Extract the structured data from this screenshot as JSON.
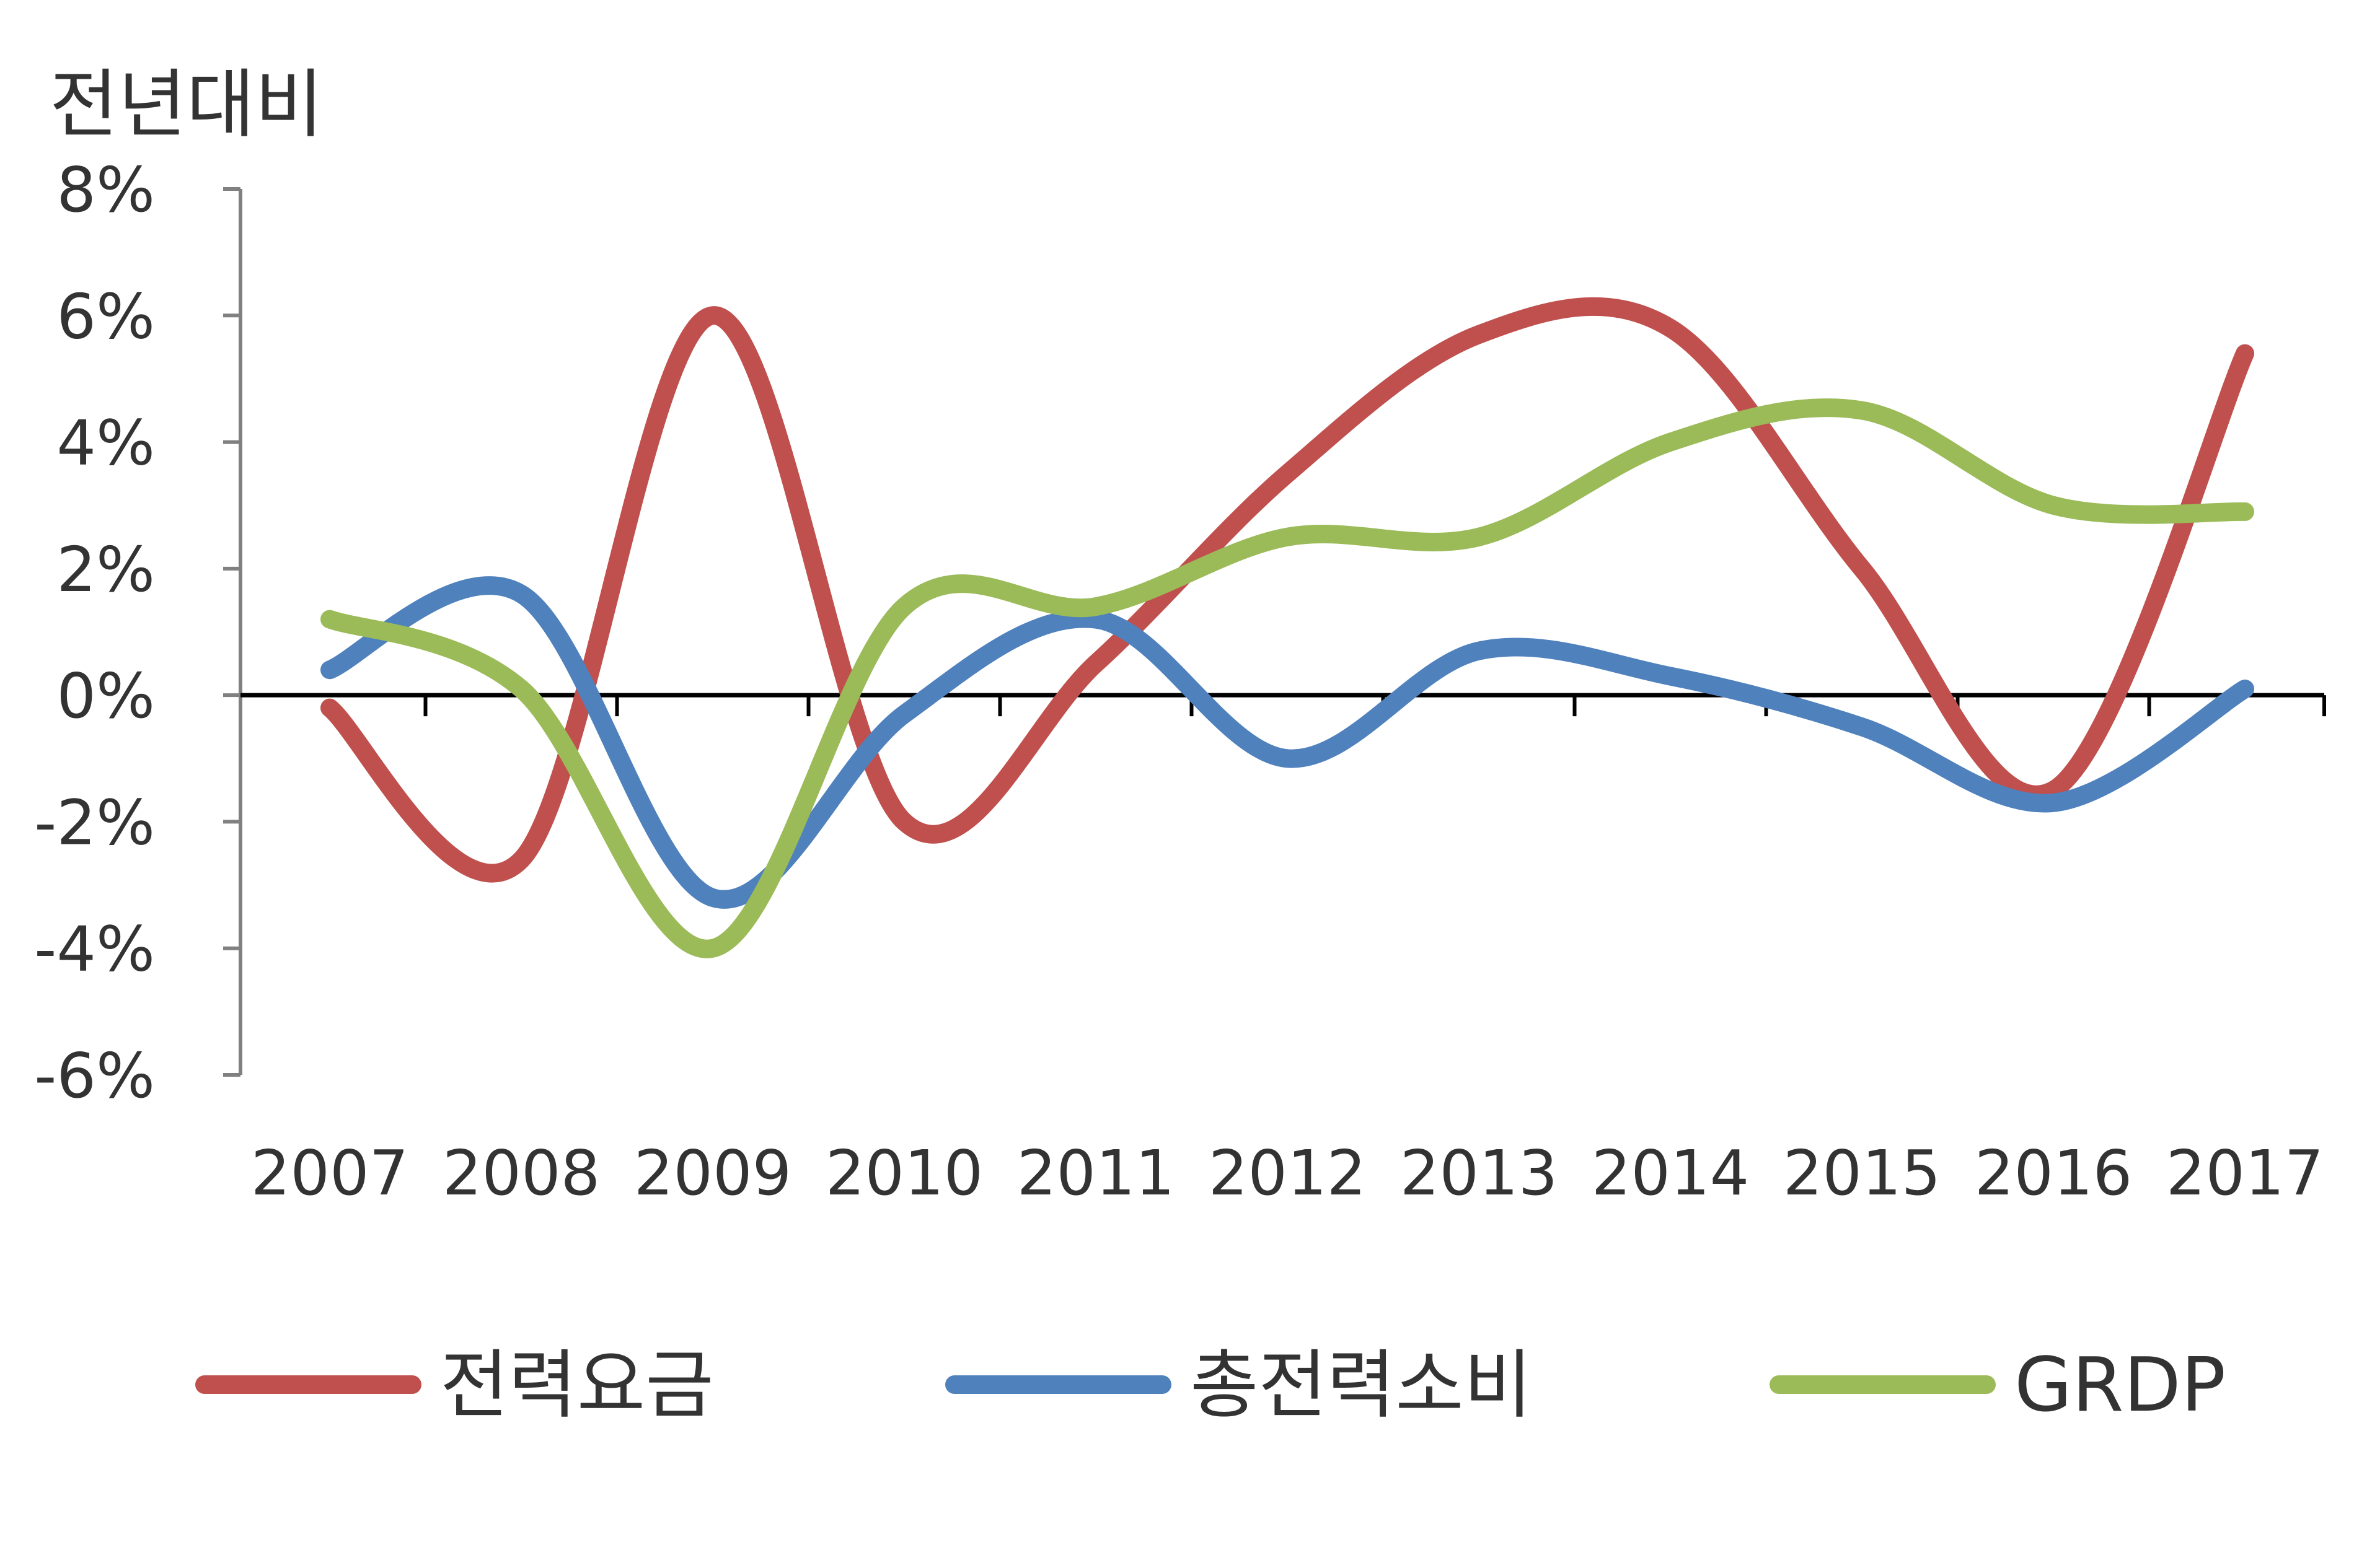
{
  "chart_data": {
    "type": "line",
    "title": "",
    "xlabel": "",
    "ylabel": "전년대비",
    "categories": [
      "2007",
      "2008",
      "2009",
      "2010",
      "2011",
      "2012",
      "2013",
      "2014",
      "2015",
      "2016",
      "2017"
    ],
    "yticks": [
      "8%",
      "6%",
      "4%",
      "2%",
      "0%",
      "-2%",
      "-4%",
      "-6%"
    ],
    "ylim": [
      -6,
      8
    ],
    "grid": false,
    "legend_position": "bottom",
    "series": [
      {
        "name": "전력요금",
        "color": "#c0504d",
        "values": [
          -0.2,
          -2.6,
          6.0,
          -2.0,
          0.5,
          3.5,
          5.7,
          5.8,
          2.0,
          -1.5,
          5.4
        ]
      },
      {
        "name": "총전력소비",
        "color": "#4f81bd",
        "values": [
          0.4,
          1.6,
          -3.2,
          -0.3,
          1.2,
          -1.0,
          0.7,
          0.3,
          -0.5,
          -1.7,
          0.1
        ]
      },
      {
        "name": "GRDP",
        "color": "#9bbb59",
        "values": [
          1.2,
          0.1,
          -4.0,
          1.4,
          1.4,
          2.5,
          2.5,
          4.0,
          4.5,
          3.0,
          2.9
        ]
      }
    ]
  }
}
